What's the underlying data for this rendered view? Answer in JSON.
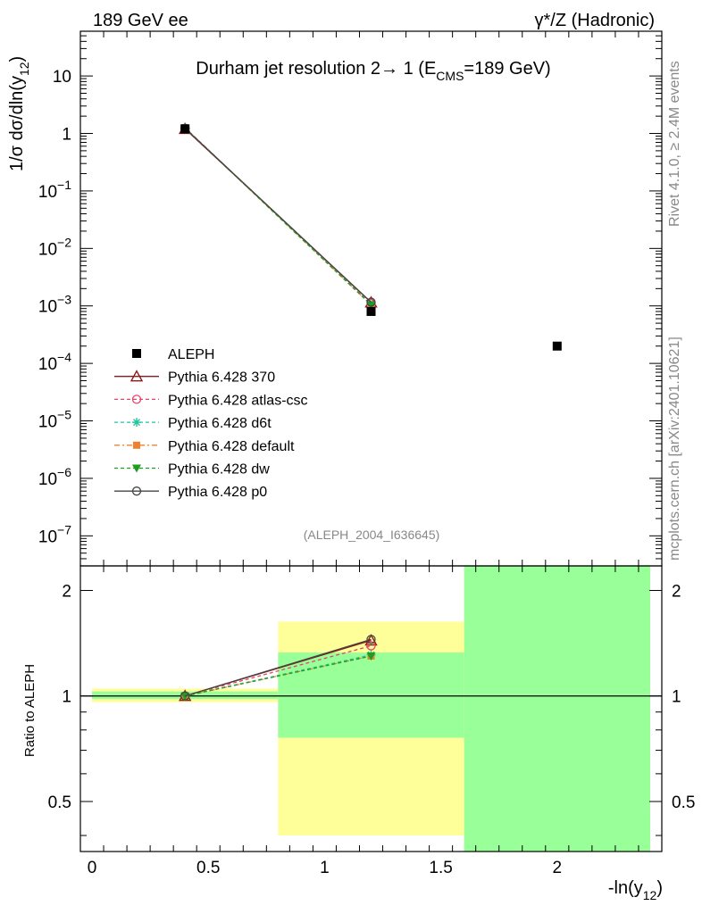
{
  "header": {
    "left": "189 GeV ee",
    "right": "γ*/Z (Hadronic)"
  },
  "side_text": {
    "rivet": "Rivet 4.1.0, ≥ 2.4M events",
    "mcplots": "mcplots.cern.ch [arXiv:2401.10621]"
  },
  "analysis_id": "(ALEPH_2004_I636645)",
  "chart_data": [
    {
      "type": "scatter",
      "panel": "main",
      "title": "Durham jet resolution 2→ 1 (E_CMS=189 GeV)",
      "title_parts": {
        "main": "Durham jet resolution 2",
        "arrow": "→",
        "one": " 1 (E",
        "sub": "CMS",
        "tail": "=189 GeV)"
      },
      "ylabel_parts": {
        "main": "1/σ  dσ/dln(y",
        "sub": "12",
        "tail": ")"
      },
      "xlabel_parts": {
        "main": "-ln(y",
        "sub": "12",
        "tail": ")"
      },
      "yscale": "log",
      "ylim": [
        3e-08,
        60
      ],
      "xlim": [
        -0.05,
        2.45
      ],
      "ytick_labels": [
        {
          "value": 10,
          "base": "10",
          "exp": ""
        },
        {
          "value": 1,
          "base": "1",
          "exp": ""
        },
        {
          "value": 0.1,
          "base": "10",
          "exp": "−1"
        },
        {
          "value": 0.01,
          "base": "10",
          "exp": "−2"
        },
        {
          "value": 0.001,
          "base": "10",
          "exp": "−3"
        },
        {
          "value": 0.0001,
          "base": "10",
          "exp": "−4"
        },
        {
          "value": 1e-05,
          "base": "10",
          "exp": "−5"
        },
        {
          "value": 1e-06,
          "base": "10",
          "exp": "−6"
        },
        {
          "value": 1e-07,
          "base": "10",
          "exp": "−7"
        }
      ],
      "data": {
        "name": "ALEPH",
        "x": [
          0.4,
          1.2,
          2.0
        ],
        "y": [
          1.2,
          0.0008,
          0.0002
        ]
      },
      "series": [
        {
          "name": "Pythia 6.428 370",
          "color": "#8b1a1a",
          "dash": "",
          "marker": "triangle-open",
          "x": [
            0.4,
            1.2
          ],
          "y": [
            1.2,
            0.00115
          ]
        },
        {
          "name": "Pythia 6.428 atlas-csc",
          "color": "#e8436a",
          "dash": "4,3",
          "marker": "circle-open",
          "x": [
            0.4,
            1.2
          ],
          "y": [
            1.22,
            0.00111
          ]
        },
        {
          "name": "Pythia 6.428 d6t",
          "color": "#22c4a0",
          "dash": "4,3",
          "marker": "star",
          "x": [
            0.4,
            1.2
          ],
          "y": [
            1.25,
            0.00105
          ]
        },
        {
          "name": "Pythia 6.428 default",
          "color": "#f08030",
          "dash": "6,3,2,3",
          "marker": "square",
          "x": [
            0.4,
            1.2
          ],
          "y": [
            1.26,
            0.00104
          ]
        },
        {
          "name": "Pythia 6.428 dw",
          "color": "#1e9e1e",
          "dash": "4,3",
          "marker": "triangle-down",
          "x": [
            0.4,
            1.2
          ],
          "y": [
            1.25,
            0.00104
          ]
        },
        {
          "name": "Pythia 6.428 p0",
          "color": "#444444",
          "dash": "",
          "marker": "circle-open",
          "x": [
            0.4,
            1.2
          ],
          "y": [
            1.23,
            0.00116
          ]
        }
      ]
    },
    {
      "type": "line",
      "panel": "ratio",
      "ylabel": "Ratio to ALEPH",
      "yscale": "log",
      "ylim": [
        0.36,
        2.35
      ],
      "xlim": [
        -0.05,
        2.45
      ],
      "ytick_labels": [
        "2",
        "1",
        "0.5"
      ],
      "yticks": [
        2,
        1,
        0.5
      ],
      "xtick_labels": [
        "0",
        "0.5",
        "1",
        "1.5",
        "2"
      ],
      "xticks": [
        0,
        0.5,
        1,
        1.5,
        2
      ],
      "bands": [
        {
          "x0": 0.0,
          "x1": 0.8,
          "yellow": [
            0.96,
            1.05
          ],
          "green": [
            0.98,
            1.03
          ]
        },
        {
          "x0": 0.8,
          "x1": 1.6,
          "yellow": [
            0.4,
            1.63
          ],
          "green": [
            0.76,
            1.33
          ]
        },
        {
          "x0": 1.6,
          "x1": 2.4,
          "yellow": [
            0.36,
            2.35
          ],
          "green": [
            0.36,
            2.35
          ]
        }
      ],
      "series": [
        {
          "name": "Pythia 6.428 370",
          "x": [
            0.4,
            1.2
          ],
          "y": [
            1.0,
            1.44
          ]
        },
        {
          "name": "Pythia 6.428 atlas-csc",
          "x": [
            0.4,
            1.2
          ],
          "y": [
            1.0,
            1.39
          ]
        },
        {
          "name": "Pythia 6.428 d6t",
          "x": [
            0.4,
            1.2
          ],
          "y": [
            1.0,
            1.31
          ]
        },
        {
          "name": "Pythia 6.428 default",
          "x": [
            0.4,
            1.2
          ],
          "y": [
            1.0,
            1.3
          ]
        },
        {
          "name": "Pythia 6.428 dw",
          "x": [
            0.4,
            1.2
          ],
          "y": [
            1.0,
            1.3
          ]
        },
        {
          "name": "Pythia 6.428 p0",
          "x": [
            0.4,
            1.2
          ],
          "y": [
            1.0,
            1.45
          ]
        }
      ]
    }
  ],
  "colors": {
    "band_yellow": "#ffff99",
    "band_green": "#99ff99",
    "data": "#000000"
  }
}
